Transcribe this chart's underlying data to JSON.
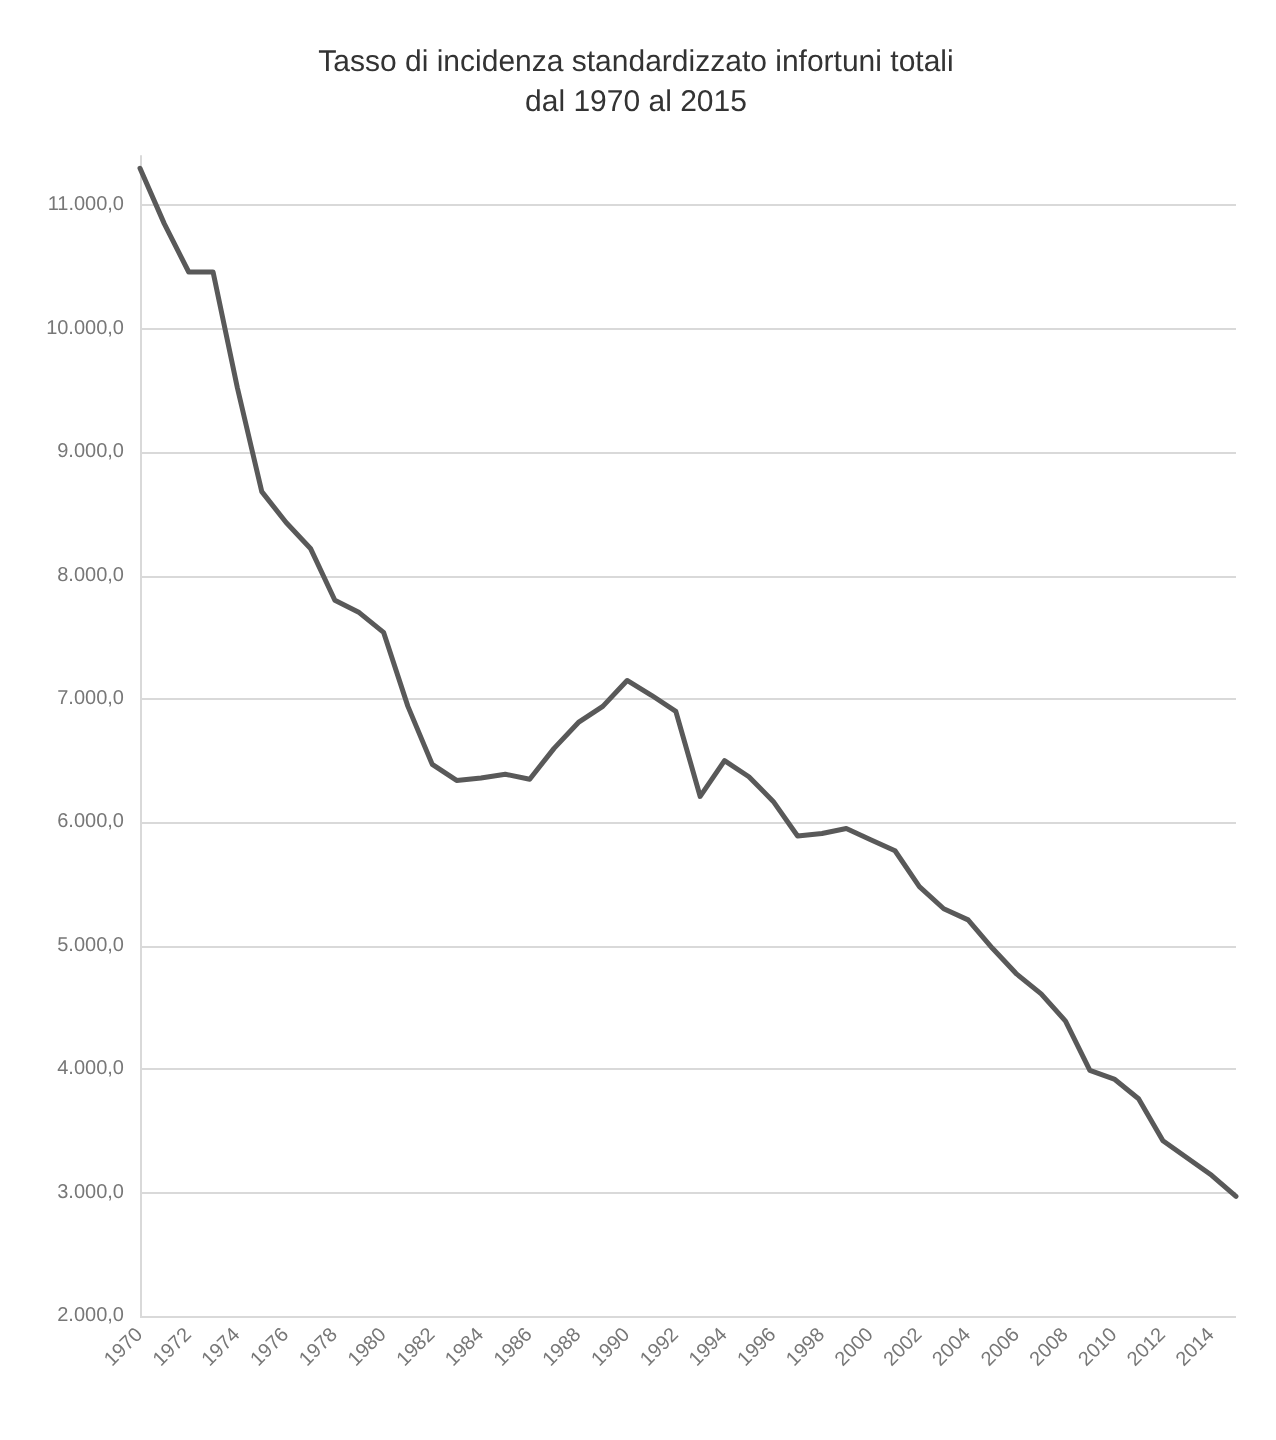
{
  "chart_data": {
    "type": "line",
    "title": "Tasso di incidenza standardizzato infortuni totali\ndal 1970 al 2015",
    "categories": [
      "1970",
      null,
      "1972",
      null,
      "1974",
      null,
      "1976",
      null,
      "1978",
      null,
      "1980",
      null,
      "1982",
      null,
      "1984",
      null,
      "1986",
      null,
      "1988",
      null,
      "1990",
      null,
      "1992",
      null,
      "1994",
      null,
      "1996",
      null,
      "1998",
      null,
      "2000",
      null,
      "2002",
      null,
      "2004",
      null,
      "2006",
      null,
      "2008",
      null,
      "2010",
      null,
      "2012",
      null,
      "2014",
      null
    ],
    "series": [
      {
        "color": "#595959",
        "values": [
          11300,
          10850,
          10460,
          10460,
          9520,
          8680,
          8430,
          8220,
          7800,
          7700,
          7540,
          6940,
          6470,
          6340,
          6360,
          6390,
          6350,
          6600,
          6810,
          6940,
          7150,
          7030,
          6900,
          6210,
          6500,
          6370,
          6170,
          5890,
          5910,
          5950,
          5860,
          5770,
          5480,
          5300,
          5210,
          4980,
          4770,
          4610,
          4390,
          3990,
          3920,
          3760,
          3420,
          3280,
          3140,
          2970
        ]
      }
    ],
    "ylim": [
      2000,
      11400
    ],
    "yticks": [
      {
        "value": 2000,
        "label": "2.000,0"
      },
      {
        "value": 3000,
        "label": "3.000,0"
      },
      {
        "value": 4000,
        "label": "4.000,0"
      },
      {
        "value": 5000,
        "label": "5.000,0"
      },
      {
        "value": 6000,
        "label": "6.000,0"
      },
      {
        "value": 7000,
        "label": "7.000,0"
      },
      {
        "value": 8000,
        "label": "8.000,0"
      },
      {
        "value": 9000,
        "label": "9.000,0"
      },
      {
        "value": 10000,
        "label": "10.000,0"
      },
      {
        "value": 11000,
        "label": "11.000,0"
      }
    ],
    "grid": "y",
    "marker": "none",
    "line_style": "solid"
  }
}
